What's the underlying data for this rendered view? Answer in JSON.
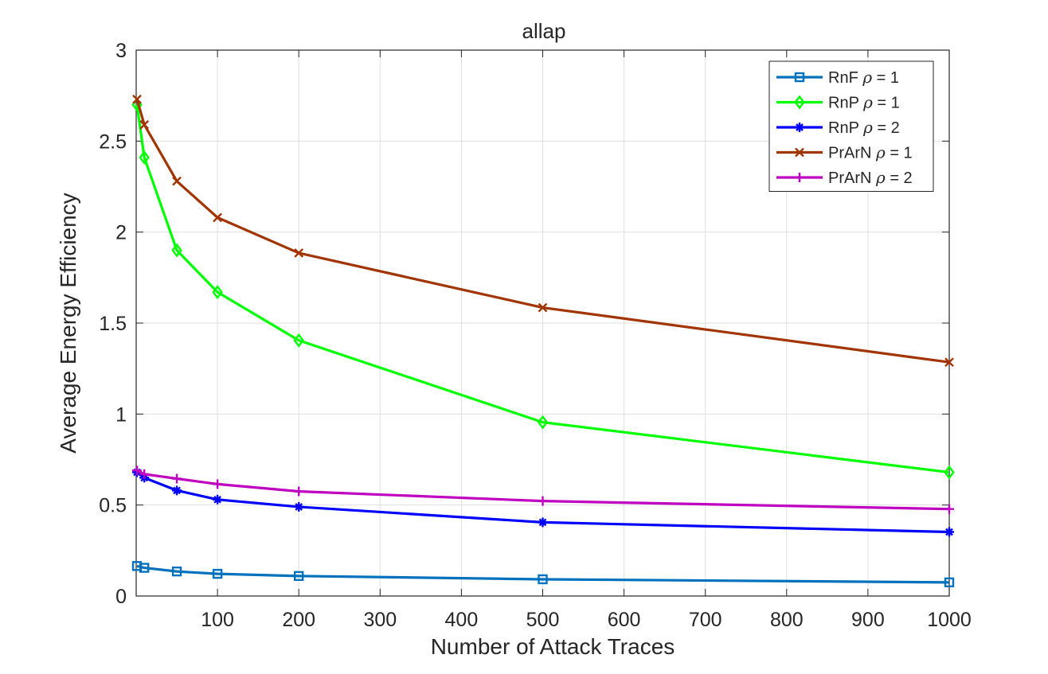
{
  "chart_data": {
    "type": "line",
    "title": "allap",
    "xlabel": "Number of Attack Traces",
    "ylabel": "Average Energy Efficiency",
    "xlim": [
      0,
      1000
    ],
    "ylim": [
      0,
      3
    ],
    "x_ticks": [
      100,
      200,
      300,
      400,
      500,
      600,
      700,
      800,
      900,
      1000
    ],
    "y_ticks": [
      0,
      0.5,
      1,
      1.5,
      2,
      2.5,
      3
    ],
    "grid": true,
    "legend_position": "top-right",
    "x": [
      1,
      10,
      50,
      100,
      200,
      500,
      1000
    ],
    "series": [
      {
        "name": "RnF",
        "rho": "1",
        "color": "#0072BD",
        "marker": "square",
        "values": [
          0.165,
          0.155,
          0.135,
          0.122,
          0.11,
          0.092,
          0.075
        ]
      },
      {
        "name": "RnP",
        "rho": "1",
        "color": "#00FF00",
        "marker": "diamond",
        "values": [
          2.7,
          2.41,
          1.9,
          1.67,
          1.405,
          0.955,
          0.68
        ]
      },
      {
        "name": "RnP",
        "rho": "2",
        "color": "#0000FF",
        "marker": "asterisk",
        "values": [
          0.68,
          0.65,
          0.58,
          0.53,
          0.49,
          0.405,
          0.352
        ]
      },
      {
        "name": "PrArN",
        "rho": "1",
        "color": "#A23400",
        "marker": "x",
        "values": [
          2.73,
          2.59,
          2.28,
          2.08,
          1.885,
          1.585,
          1.285
        ]
      },
      {
        "name": "PrArN",
        "rho": "2",
        "color": "#C000C0",
        "marker": "plus",
        "values": [
          0.69,
          0.67,
          0.645,
          0.615,
          0.575,
          0.522,
          0.478
        ]
      }
    ]
  }
}
